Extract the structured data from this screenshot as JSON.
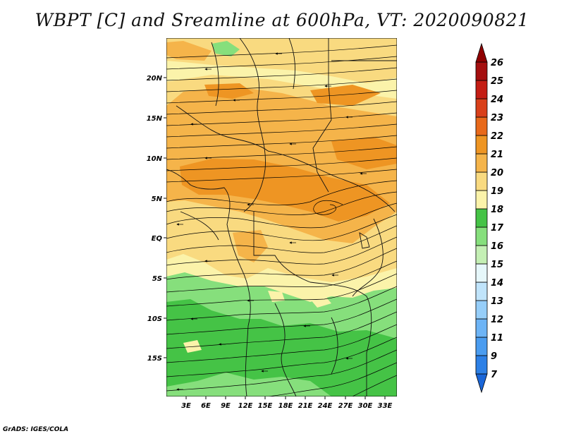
{
  "title": "WBPT [C] and Sreamline at 600hPa, VT: 2020090821",
  "credit": "GrADS: IGES/COLA",
  "map": {
    "lon_labels": [
      "3E",
      "6E",
      "9E",
      "12E",
      "15E",
      "18E",
      "21E",
      "24E",
      "27E",
      "30E",
      "33E"
    ],
    "lat_labels": [
      "20N",
      "15N",
      "10N",
      "5N",
      "EQ",
      "5S",
      "10S",
      "15S"
    ]
  },
  "colorbar": {
    "levels": [
      "7",
      "9",
      "11",
      "12",
      "13",
      "14",
      "15",
      "16",
      "17",
      "18",
      "19",
      "20",
      "21",
      "22",
      "23",
      "24",
      "25",
      "26"
    ],
    "colors": [
      "#1a66d8",
      "#2d80e6",
      "#4a9cf0",
      "#6db4f6",
      "#96cef9",
      "#c0e4fb",
      "#e6f7fa",
      "#c4efb4",
      "#86df7c",
      "#45c346",
      "#fbf3aa",
      "#f9da80",
      "#f5b44a",
      "#ee9523",
      "#e8691a",
      "#d9401a",
      "#c41d14",
      "#a50f0f",
      "#8f0000"
    ]
  }
}
